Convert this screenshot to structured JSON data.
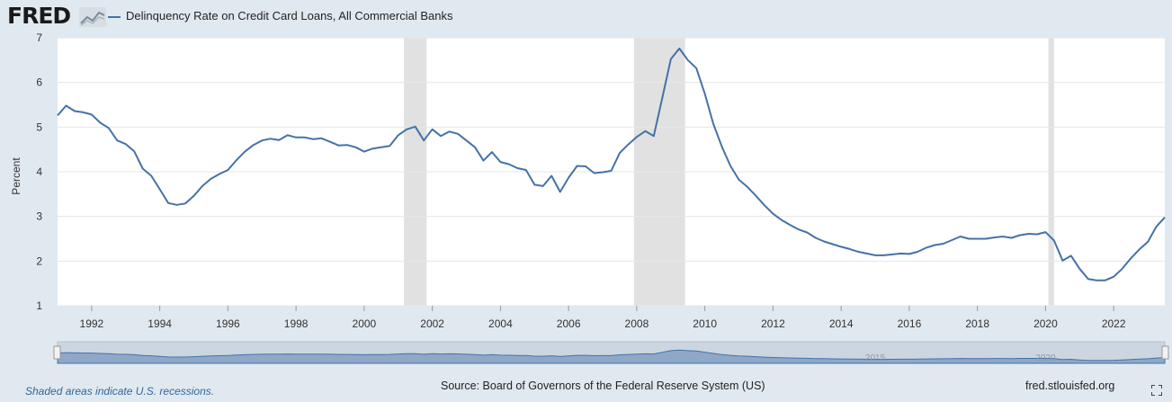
{
  "header": {
    "logo_text": "FRED",
    "logo_icon": "line-chart-icon",
    "legend_label": "Delinquency Rate on Credit Card Loans, All Commercial Banks"
  },
  "footer": {
    "note": "Shaded areas indicate U.S. recessions.",
    "source": "Source: Board of Governors of the Federal Reserve System (US)",
    "site": "fred.stlouisfed.org",
    "expand_icon": "fullscreen-icon"
  },
  "colors": {
    "series": "#4572a7",
    "recession": "#e1e1e1",
    "background": "#e1e9f0",
    "plot": "#ffffff"
  },
  "chart_data": {
    "type": "line",
    "title": "",
    "xlabel": "",
    "ylabel": "Percent",
    "xlim": [
      1991.0,
      2023.5
    ],
    "ylim": [
      1,
      7
    ],
    "yticks": [
      1,
      2,
      3,
      4,
      5,
      6,
      7
    ],
    "xticks": [
      "1992",
      "1994",
      "1996",
      "1998",
      "2000",
      "2002",
      "2004",
      "2006",
      "2008",
      "2010",
      "2012",
      "2014",
      "2016",
      "2018",
      "2020",
      "2022"
    ],
    "grid": true,
    "legend": "top-left",
    "recessions": [
      [
        2001.167,
        2001.833
      ],
      [
        2007.917,
        2009.417
      ],
      [
        2020.083,
        2020.25
      ]
    ],
    "navigator_ticks": [
      "2015",
      "2020"
    ],
    "series": [
      {
        "name": "Delinquency Rate on Credit Card Loans, All Commercial Banks",
        "x": [
          1991.0,
          1991.25,
          1991.5,
          1991.75,
          1992.0,
          1992.25,
          1992.5,
          1992.75,
          1993.0,
          1993.25,
          1993.5,
          1993.75,
          1994.0,
          1994.25,
          1994.5,
          1994.75,
          1995.0,
          1995.25,
          1995.5,
          1995.75,
          1996.0,
          1996.25,
          1996.5,
          1996.75,
          1997.0,
          1997.25,
          1997.5,
          1997.75,
          1998.0,
          1998.25,
          1998.5,
          1998.75,
          1999.0,
          1999.25,
          1999.5,
          1999.75,
          2000.0,
          2000.25,
          2000.5,
          2000.75,
          2001.0,
          2001.25,
          2001.5,
          2001.75,
          2002.0,
          2002.25,
          2002.5,
          2002.75,
          2003.0,
          2003.25,
          2003.5,
          2003.75,
          2004.0,
          2004.25,
          2004.5,
          2004.75,
          2005.0,
          2005.25,
          2005.5,
          2005.75,
          2006.0,
          2006.25,
          2006.5,
          2006.75,
          2007.0,
          2007.25,
          2007.5,
          2007.75,
          2008.0,
          2008.25,
          2008.5,
          2008.75,
          2009.0,
          2009.25,
          2009.5,
          2009.75,
          2010.0,
          2010.25,
          2010.5,
          2010.75,
          2011.0,
          2011.25,
          2011.5,
          2011.75,
          2012.0,
          2012.25,
          2012.5,
          2012.75,
          2013.0,
          2013.25,
          2013.5,
          2013.75,
          2014.0,
          2014.25,
          2014.5,
          2014.75,
          2015.0,
          2015.25,
          2015.5,
          2015.75,
          2016.0,
          2016.25,
          2016.5,
          2016.75,
          2017.0,
          2017.25,
          2017.5,
          2017.75,
          2018.0,
          2018.25,
          2018.5,
          2018.75,
          2019.0,
          2019.25,
          2019.5,
          2019.75,
          2020.0,
          2020.25,
          2020.5,
          2020.75,
          2021.0,
          2021.25,
          2021.5,
          2021.75,
          2022.0,
          2022.25,
          2022.5,
          2022.75,
          2023.0,
          2023.25,
          2023.5
        ],
        "values": [
          5.26,
          5.48,
          5.36,
          5.33,
          5.28,
          5.1,
          4.98,
          4.7,
          4.62,
          4.46,
          4.07,
          3.91,
          3.61,
          3.3,
          3.26,
          3.29,
          3.46,
          3.68,
          3.84,
          3.95,
          4.04,
          4.26,
          4.45,
          4.6,
          4.7,
          4.74,
          4.71,
          4.82,
          4.77,
          4.77,
          4.73,
          4.75,
          4.67,
          4.59,
          4.6,
          4.55,
          4.45,
          4.52,
          4.55,
          4.58,
          4.82,
          4.95,
          5.01,
          4.7,
          4.95,
          4.8,
          4.9,
          4.85,
          4.7,
          4.55,
          4.25,
          4.44,
          4.22,
          4.17,
          4.08,
          4.04,
          3.71,
          3.68,
          3.91,
          3.55,
          3.87,
          4.13,
          4.12,
          3.97,
          3.99,
          4.02,
          4.42,
          4.61,
          4.78,
          4.91,
          4.8,
          5.65,
          6.52,
          6.76,
          6.5,
          6.32,
          5.74,
          5.07,
          4.56,
          4.13,
          3.82,
          3.66,
          3.46,
          3.25,
          3.06,
          2.92,
          2.81,
          2.71,
          2.64,
          2.52,
          2.44,
          2.38,
          2.32,
          2.27,
          2.21,
          2.17,
          2.13,
          2.13,
          2.15,
          2.17,
          2.16,
          2.21,
          2.3,
          2.36,
          2.39,
          2.47,
          2.55,
          2.5,
          2.5,
          2.5,
          2.53,
          2.55,
          2.52,
          2.58,
          2.61,
          2.6,
          2.65,
          2.46,
          2.01,
          2.12,
          1.83,
          1.6,
          1.57,
          1.57,
          1.65,
          1.83,
          2.06,
          2.26,
          2.43,
          2.77,
          2.98
        ]
      }
    ]
  }
}
